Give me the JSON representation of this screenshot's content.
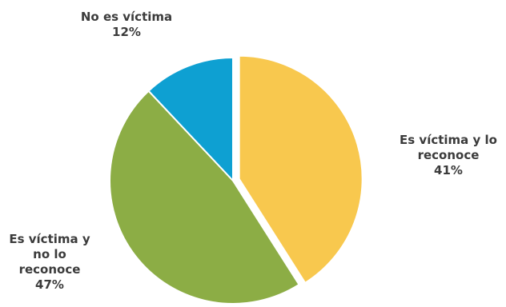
{
  "chart_data": {
    "type": "pie",
    "start_angle_deg": 0,
    "direction": "clockwise",
    "slices": [
      {
        "label_lines": [
          "Es víctima y lo",
          "reconoce"
        ],
        "value_text": "41%",
        "value": 41,
        "color": "#f8c84e",
        "exploded": true
      },
      {
        "label_lines": [
          "Es víctima y",
          "no lo",
          "reconoce"
        ],
        "value_text": "47%",
        "value": 47,
        "color": "#8cad45",
        "exploded": false
      },
      {
        "label_lines": [
          "No es víctima"
        ],
        "value_text": "12%",
        "value": 12,
        "color": "#0ea0d2",
        "exploded": false
      }
    ]
  }
}
